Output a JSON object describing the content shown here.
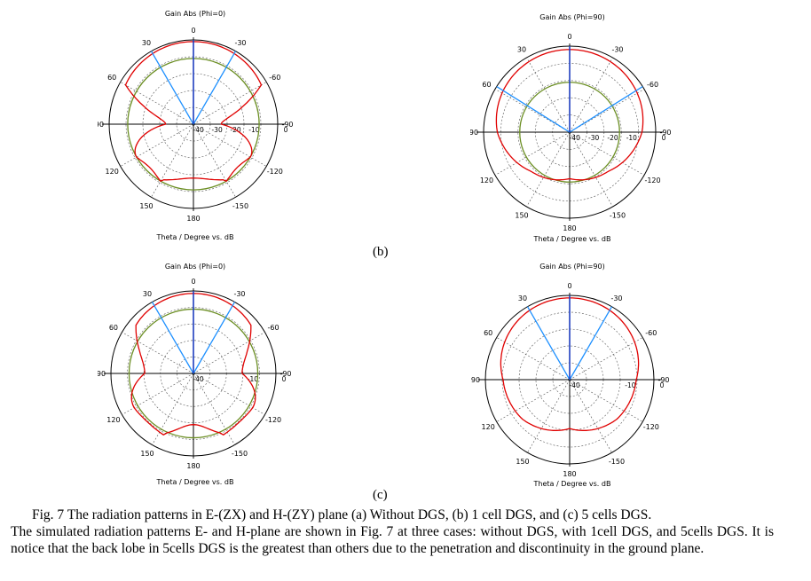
{
  "plots": [
    {
      "id": "b-left",
      "title": "Gain Abs (Phi=0)",
      "xlabel": "Theta / Degree vs. dB",
      "angle_labels": [
        "0",
        "30",
        "60",
        "90",
        "120",
        "150",
        "180",
        "-150",
        "-120",
        "-90",
        "-60",
        "-30"
      ],
      "ring_labels": [
        "-40",
        "-30",
        "-20",
        "-10",
        "0"
      ],
      "color_main": "#e00000",
      "color_ref": "#6b8e23",
      "color_beam": "#1e90ff"
    },
    {
      "id": "b-right",
      "title": "Gain Abs (Phi=90)",
      "xlabel": "Theta / Degree vs. dB",
      "angle_labels": [
        "0",
        "30",
        "60",
        "90",
        "120",
        "150",
        "180",
        "-150",
        "-120",
        "-90",
        "-60",
        "-30"
      ],
      "ring_labels": [
        "-40",
        "-30",
        "-20",
        "-10",
        "0"
      ],
      "color_main": "#e00000",
      "color_ref": "#6b8e23",
      "color_beam": "#1e90ff"
    },
    {
      "id": "c-left",
      "title": "Gain Abs (Phi=0)",
      "xlabel": "Theta / Degree vs. dB",
      "angle_labels": [
        "0",
        "30",
        "60",
        "90",
        "120",
        "150",
        "180",
        "-150",
        "-120",
        "-90",
        "-60",
        "-30"
      ],
      "ring_labels": [
        "-40",
        "-10",
        "0"
      ],
      "color_main": "#e00000",
      "color_ref": "#6b8e23",
      "color_beam": "#1e90ff"
    },
    {
      "id": "c-right",
      "title": "Gain Abs (Phi=90)",
      "xlabel": "Theta / Degree vs. dB",
      "angle_labels": [
        "0",
        "30",
        "60",
        "90",
        "120",
        "150",
        "180",
        "-150",
        "-120",
        "-90",
        "-60",
        "-30"
      ],
      "ring_labels": [
        "-40",
        "-10",
        "0"
      ],
      "color_main": "#e00000",
      "color_ref": "#6b8e23",
      "color_beam": "#1e90ff"
    }
  ],
  "labels": {
    "b": "(b)",
    "c": "(c)"
  },
  "caption": {
    "figure": "Fig. 7 The radiation patterns in E-(ZX) and H-(ZY) plane (a) Without DGS, (b) 1 cell DGS, and (c) 5 cells DGS.",
    "body": "The simulated radiation patterns E- and H-plane are shown in Fig. 7 at three cases: without DGS, with 1cell DGS, and 5cells DGS. It is notice that the back lobe in 5cells DGS is the greatest than others due to the penetration and discontinuity in the ground plane."
  }
}
